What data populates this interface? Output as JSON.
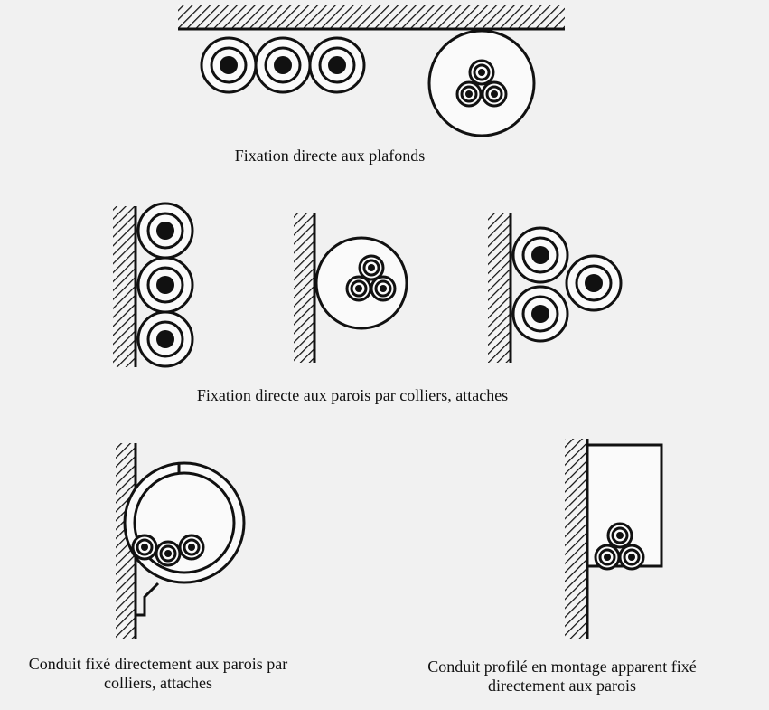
{
  "captions": [
    {
      "lines": [
        "Fixation directe aux plafonds"
      ]
    },
    {
      "lines": [
        "Fixation directe aux parois par colliers, attaches"
      ]
    },
    {
      "lines": [
        "Conduit fixé directement aux parois par",
        "colliers, attaches"
      ]
    },
    {
      "lines": [
        "Conduit profilé en montage apparent fixé",
        "directement aux parois"
      ]
    }
  ]
}
